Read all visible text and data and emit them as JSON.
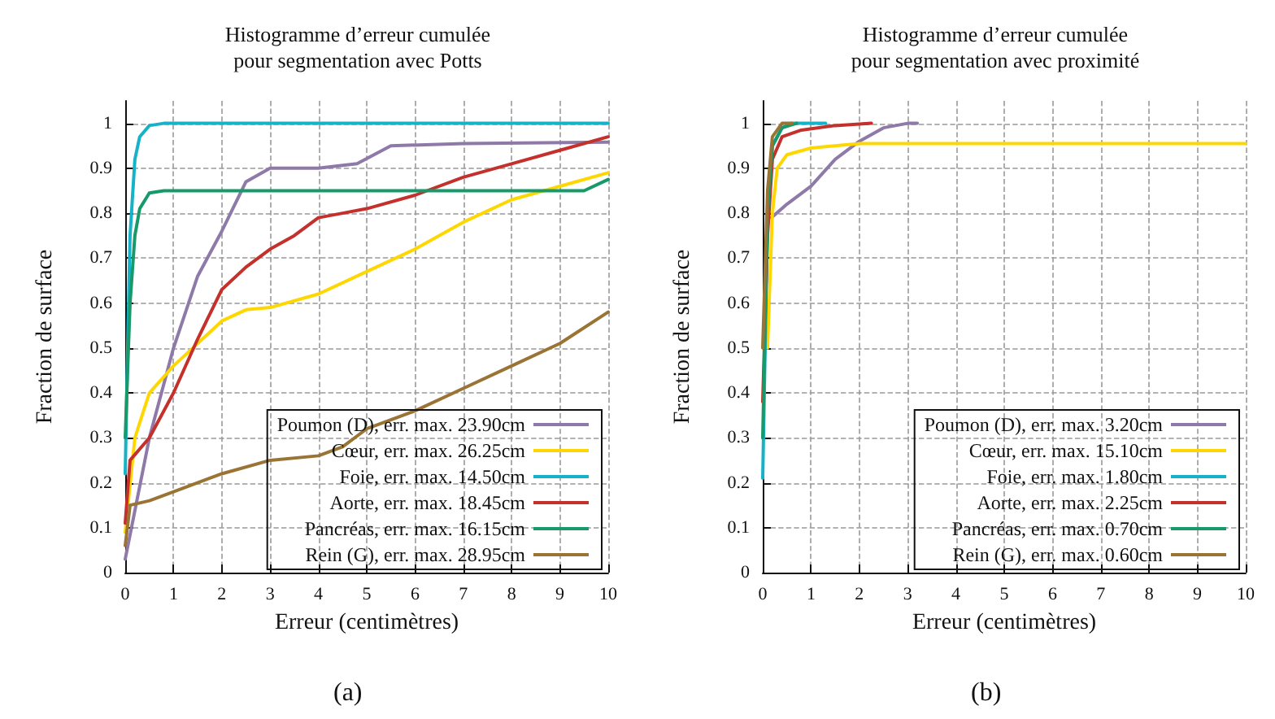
{
  "chart_data": [
    {
      "type": "line",
      "title": "Histogramme d’erreur cumulée\npour segmentation avec Potts",
      "xlabel": "Erreur (centimètres)",
      "ylabel": "Fraction de surface",
      "annotations": [
        "(a)"
      ],
      "xlim": [
        0,
        10
      ],
      "xticks": [
        0,
        1,
        2,
        3,
        4,
        5,
        6,
        7,
        8,
        9,
        10
      ],
      "ylim": [
        0,
        1.05
      ],
      "yticks": [
        0,
        0.1,
        0.2,
        0.3,
        0.4,
        0.5,
        0.6,
        0.7,
        0.8,
        0.9,
        1
      ],
      "grid": true,
      "legend": "bottom right",
      "marker": "none",
      "line_style": "solid",
      "series": [
        {
          "name": "Poumon (D), err. max. 23.90cm",
          "color": "#8e79a8",
          "x": [
            0,
            0.5,
            1,
            1.5,
            2,
            2.5,
            3,
            4,
            4.8,
            5.5,
            7,
            10
          ],
          "values": [
            0.03,
            0.3,
            0.5,
            0.66,
            0.76,
            0.87,
            0.9,
            0.9,
            0.91,
            0.95,
            0.955,
            0.958
          ]
        },
        {
          "name": "Cœur, err. max. 26.25cm",
          "color": "#ffd700",
          "x": [
            0,
            0.2,
            0.5,
            1,
            1.5,
            2,
            2.5,
            3,
            4,
            5,
            6,
            7,
            8,
            9,
            10
          ],
          "values": [
            0.09,
            0.3,
            0.4,
            0.46,
            0.51,
            0.56,
            0.585,
            0.59,
            0.62,
            0.67,
            0.72,
            0.78,
            0.83,
            0.86,
            0.89
          ]
        },
        {
          "name": "Foie, err. max. 14.50cm",
          "color": "#16b3c8",
          "x": [
            0,
            0.05,
            0.1,
            0.2,
            0.3,
            0.5,
            0.8,
            10
          ],
          "values": [
            0.22,
            0.5,
            0.75,
            0.92,
            0.97,
            0.995,
            1,
            1
          ]
        },
        {
          "name": "Aorte, err. max. 18.45cm",
          "color": "#c4302b",
          "x": [
            0,
            0.1,
            0.5,
            1,
            1.5,
            2,
            2.5,
            3,
            3.5,
            4,
            4.5,
            5,
            6,
            7,
            8,
            9,
            10
          ],
          "values": [
            0.11,
            0.25,
            0.3,
            0.4,
            0.52,
            0.63,
            0.68,
            0.72,
            0.75,
            0.79,
            0.8,
            0.81,
            0.84,
            0.88,
            0.91,
            0.94,
            0.97
          ]
        },
        {
          "name": "Pancréas, err. max. 16.15cm",
          "color": "#17996a",
          "x": [
            0,
            0.1,
            0.2,
            0.3,
            0.5,
            0.8,
            9.5,
            10
          ],
          "values": [
            0.3,
            0.6,
            0.75,
            0.81,
            0.845,
            0.85,
            0.85,
            0.875
          ]
        },
        {
          "name": "Rein (G), err. max. 28.95cm",
          "color": "#9a7434",
          "x": [
            0,
            0.1,
            0.5,
            1,
            2,
            3,
            4,
            4.5,
            5,
            6,
            7,
            8,
            9,
            10
          ],
          "values": [
            0.06,
            0.15,
            0.16,
            0.18,
            0.22,
            0.25,
            0.26,
            0.28,
            0.32,
            0.36,
            0.41,
            0.46,
            0.51,
            0.58
          ]
        }
      ]
    },
    {
      "type": "line",
      "title": "Histogramme d’erreur cumulée\npour segmentation avec proximité",
      "xlabel": "Erreur (centimètres)",
      "ylabel": "Fraction de surface",
      "annotations": [
        "(b)"
      ],
      "xlim": [
        0,
        10
      ],
      "xticks": [
        0,
        1,
        2,
        3,
        4,
        5,
        6,
        7,
        8,
        9,
        10
      ],
      "ylim": [
        0,
        1.05
      ],
      "yticks": [
        0,
        0.1,
        0.2,
        0.3,
        0.4,
        0.5,
        0.6,
        0.7,
        0.8,
        0.9,
        1
      ],
      "grid": true,
      "legend": "bottom right",
      "marker": "none",
      "line_style": "solid",
      "series": [
        {
          "name": "Poumon (D), err. max. 3.20cm",
          "color": "#8e79a8",
          "x": [
            0.18,
            0.5,
            1,
            1.5,
            2,
            2.5,
            3,
            3.2
          ],
          "values": [
            0.79,
            0.82,
            0.86,
            0.92,
            0.96,
            0.99,
            1,
            1
          ]
        },
        {
          "name": "Cœur, err. max. 15.10cm",
          "color": "#ffd700",
          "x": [
            0.1,
            0.2,
            0.3,
            0.5,
            1,
            2,
            3,
            10
          ],
          "values": [
            0.5,
            0.8,
            0.9,
            0.93,
            0.945,
            0.955,
            0.955,
            0.955
          ]
        },
        {
          "name": "Foie, err. max. 1.80cm",
          "color": "#16b3c8",
          "x": [
            0,
            0.05,
            0.1,
            0.2,
            0.4,
            0.6,
            1.3
          ],
          "values": [
            0.21,
            0.5,
            0.8,
            0.95,
            0.99,
            1,
            1
          ]
        },
        {
          "name": "Aorte, err. max. 2.25cm",
          "color": "#c4302b",
          "x": [
            0,
            0.1,
            0.2,
            0.4,
            0.8,
            1.5,
            2.25
          ],
          "values": [
            0.38,
            0.75,
            0.92,
            0.97,
            0.985,
            0.995,
            1
          ]
        },
        {
          "name": "Pancréas, err. max. 0.70cm",
          "color": "#17996a",
          "x": [
            0,
            0.1,
            0.2,
            0.4,
            0.7
          ],
          "values": [
            0.3,
            0.8,
            0.95,
            0.99,
            1
          ]
        },
        {
          "name": "Rein (G), err. max. 0.60cm",
          "color": "#9a7434",
          "x": [
            0,
            0.1,
            0.2,
            0.4,
            0.6
          ],
          "values": [
            0.5,
            0.85,
            0.97,
            1,
            1
          ]
        }
      ]
    }
  ]
}
